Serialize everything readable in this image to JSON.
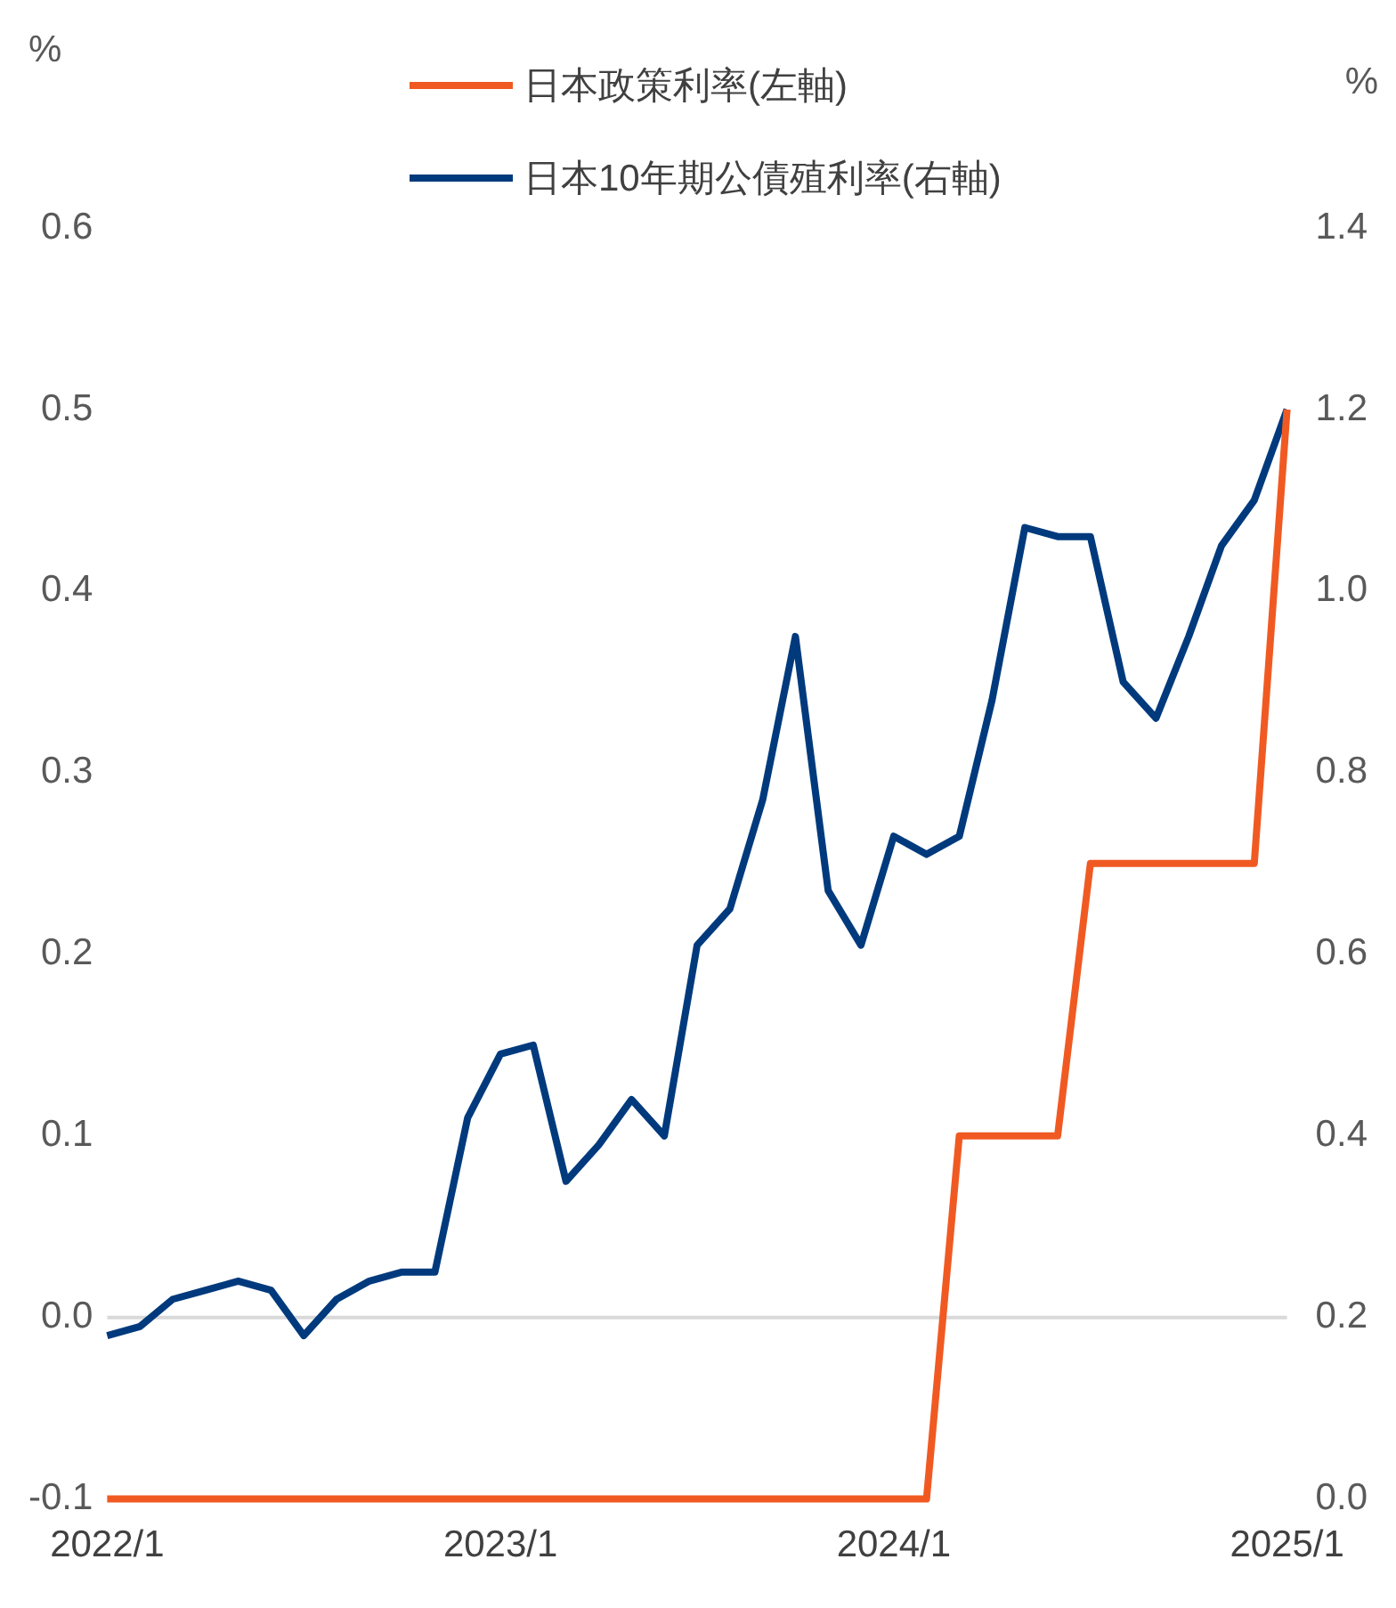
{
  "chart_data": {
    "type": "line",
    "ylabel": "%",
    "y2label": "%",
    "x": [
      "2022-01",
      "2022-02",
      "2022-03",
      "2022-04",
      "2022-05",
      "2022-06",
      "2022-07",
      "2022-08",
      "2022-09",
      "2022-10",
      "2022-11",
      "2022-12",
      "2023-01",
      "2023-02",
      "2023-03",
      "2023-04",
      "2023-05",
      "2023-06",
      "2023-07",
      "2023-08",
      "2023-09",
      "2023-10",
      "2023-11",
      "2023-12",
      "2024-01",
      "2024-02",
      "2024-03",
      "2024-04",
      "2024-05",
      "2024-06",
      "2024-07",
      "2024-08",
      "2024-09",
      "2024-10",
      "2024-11",
      "2024-12",
      "2025-01"
    ],
    "series": [
      {
        "name": "日本政策利率(左軸)",
        "color": "#f05a22",
        "values": [
          -0.1,
          -0.1,
          -0.1,
          -0.1,
          -0.1,
          -0.1,
          -0.1,
          -0.1,
          -0.1,
          -0.1,
          -0.1,
          -0.1,
          -0.1,
          -0.1,
          -0.1,
          -0.1,
          -0.1,
          -0.1,
          -0.1,
          -0.1,
          -0.1,
          -0.1,
          -0.1,
          -0.1,
          -0.1,
          -0.1,
          0.1,
          0.1,
          0.1,
          0.1,
          0.25,
          0.25,
          0.25,
          0.25,
          0.25,
          0.25,
          0.5
        ]
      },
      {
        "name": "日本10年期公債殖利率(右軸)",
        "color": "#003a7d",
        "axis": "y2",
        "values": [
          0.18,
          0.19,
          0.22,
          0.23,
          0.24,
          0.23,
          0.18,
          0.22,
          0.24,
          0.25,
          0.25,
          0.42,
          0.49,
          0.5,
          0.35,
          0.39,
          0.44,
          0.4,
          0.61,
          0.65,
          0.77,
          0.95,
          0.67,
          0.61,
          0.73,
          0.71,
          0.73,
          0.88,
          1.07,
          1.06,
          1.06,
          0.9,
          0.86,
          0.95,
          1.05,
          1.1,
          1.2
        ]
      }
    ],
    "xlim": [
      "2022-01",
      "2025-01"
    ],
    "xticks": [
      {
        "value": "2022-01",
        "label": "2022/1"
      },
      {
        "value": "2023-01",
        "label": "2023/1"
      },
      {
        "value": "2024-01",
        "label": "2024/1"
      },
      {
        "value": "2025-01",
        "label": "2025/1"
      }
    ],
    "ylim": [
      -0.1,
      0.6
    ],
    "yticks": [
      -0.1,
      {
        "value": 0,
        "label": "0.0"
      },
      0.1,
      0.2,
      0.3,
      0.4,
      0.5,
      0.6
    ],
    "y2lim": [
      0,
      1.4
    ],
    "y2ticks": [
      {
        "value": 0,
        "label": "0.0"
      },
      0.2,
      0.4,
      0.6,
      0.8,
      {
        "value": 1,
        "label": "1.0"
      },
      1.2,
      1.4
    ],
    "ref_lines": [
      {
        "axis": "y",
        "value": 0,
        "color": "#d9d9d9"
      }
    ],
    "grid": false,
    "legend": "top",
    "marker": "none",
    "line_style": "solid"
  }
}
